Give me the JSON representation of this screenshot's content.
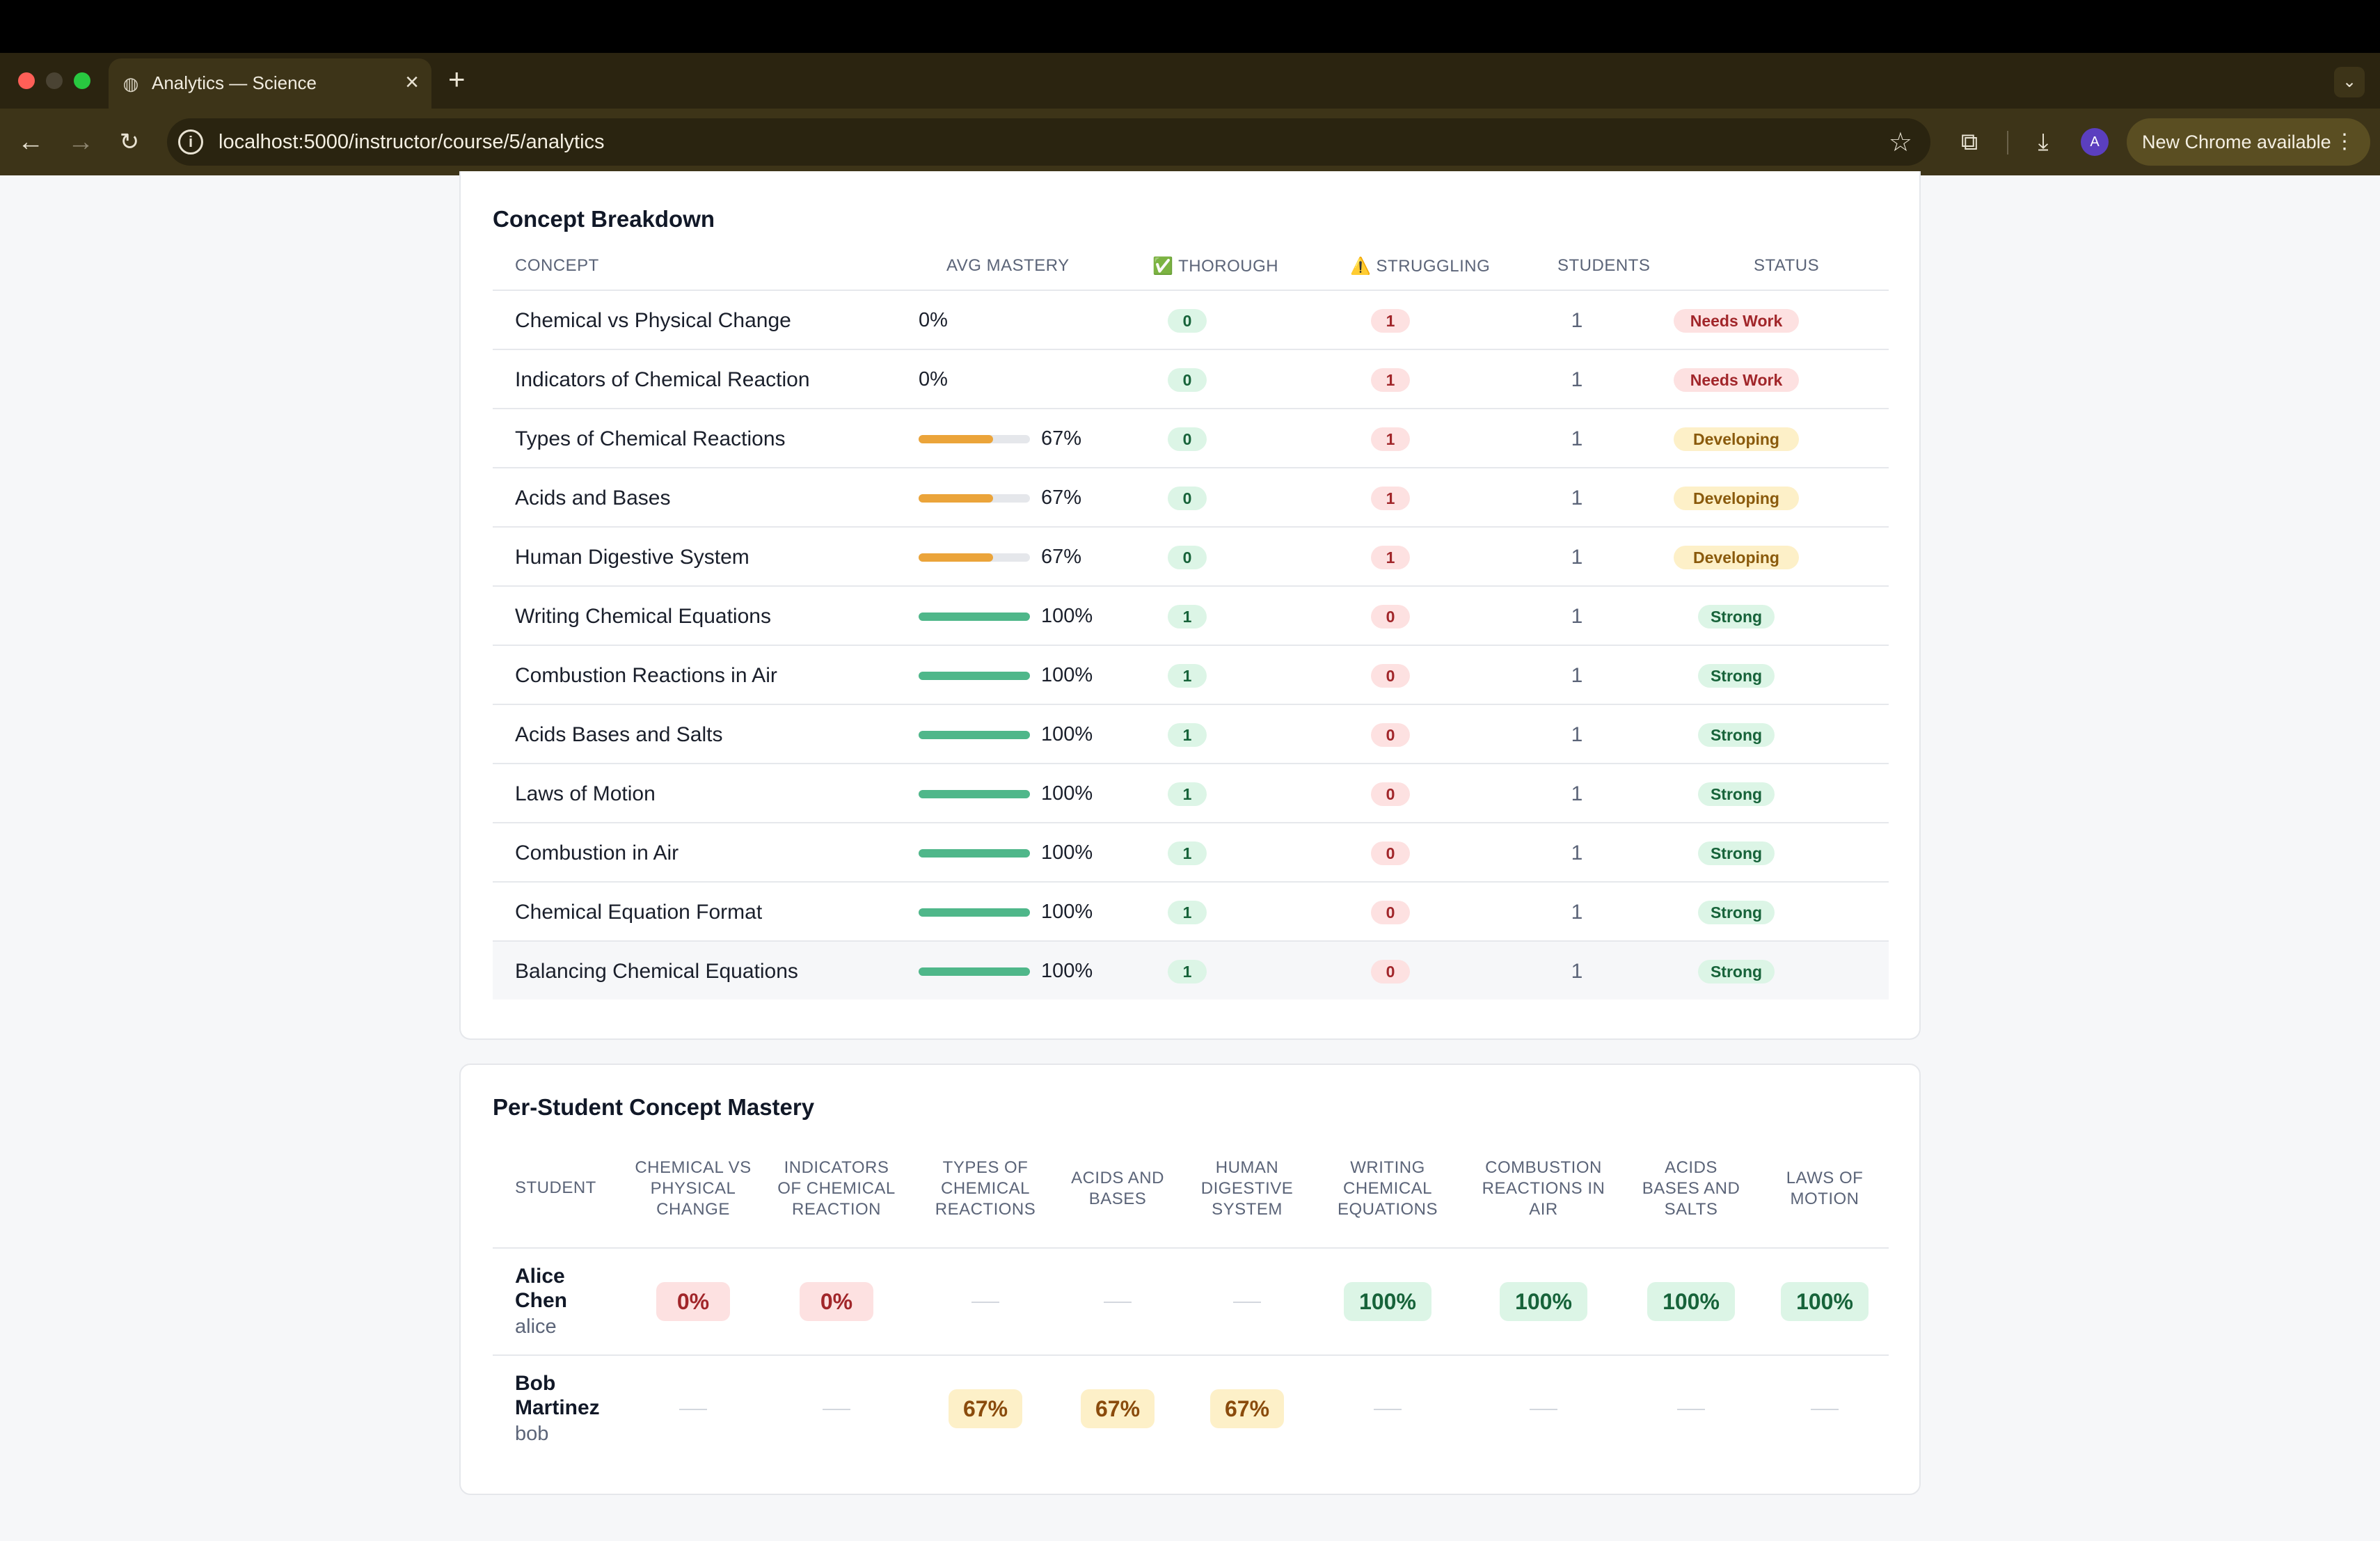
{
  "browser": {
    "tab_title": "Analytics — Science",
    "url": "localhost:5000/instructor/course/5/analytics",
    "update_label": "New Chrome available",
    "avatar_letter": "A"
  },
  "concept_breakdown": {
    "title": "Concept Breakdown",
    "headers": {
      "concept": "CONCEPT",
      "avg_mastery": "AVG MASTERY",
      "thorough": "✅ THOROUGH",
      "struggling": "⚠️ STRUGGLING",
      "students": "STUDENTS",
      "status": "STATUS"
    },
    "rows": [
      {
        "concept": "Chemical vs Physical Change",
        "mastery": "0%",
        "mastery_value": 0,
        "thorough": "0",
        "struggling": "1",
        "students": "1",
        "status": "Needs Work",
        "level": "red"
      },
      {
        "concept": "Indicators of Chemical Reaction",
        "mastery": "0%",
        "mastery_value": 0,
        "thorough": "0",
        "struggling": "1",
        "students": "1",
        "status": "Needs Work",
        "level": "red"
      },
      {
        "concept": "Types of Chemical Reactions",
        "mastery": "67%",
        "mastery_value": 67,
        "thorough": "0",
        "struggling": "1",
        "students": "1",
        "status": "Developing",
        "level": "yellow"
      },
      {
        "concept": "Acids and Bases",
        "mastery": "67%",
        "mastery_value": 67,
        "thorough": "0",
        "struggling": "1",
        "students": "1",
        "status": "Developing",
        "level": "yellow"
      },
      {
        "concept": "Human Digestive System",
        "mastery": "67%",
        "mastery_value": 67,
        "thorough": "0",
        "struggling": "1",
        "students": "1",
        "status": "Developing",
        "level": "yellow"
      },
      {
        "concept": "Writing Chemical Equations",
        "mastery": "100%",
        "mastery_value": 100,
        "thorough": "1",
        "struggling": "0",
        "students": "1",
        "status": "Strong",
        "level": "green"
      },
      {
        "concept": "Combustion Reactions in Air",
        "mastery": "100%",
        "mastery_value": 100,
        "thorough": "1",
        "struggling": "0",
        "students": "1",
        "status": "Strong",
        "level": "green"
      },
      {
        "concept": "Acids Bases and Salts",
        "mastery": "100%",
        "mastery_value": 100,
        "thorough": "1",
        "struggling": "0",
        "students": "1",
        "status": "Strong",
        "level": "green"
      },
      {
        "concept": "Laws of Motion",
        "mastery": "100%",
        "mastery_value": 100,
        "thorough": "1",
        "struggling": "0",
        "students": "1",
        "status": "Strong",
        "level": "green"
      },
      {
        "concept": "Combustion in Air",
        "mastery": "100%",
        "mastery_value": 100,
        "thorough": "1",
        "struggling": "0",
        "students": "1",
        "status": "Strong",
        "level": "green"
      },
      {
        "concept": "Chemical Equation Format",
        "mastery": "100%",
        "mastery_value": 100,
        "thorough": "1",
        "struggling": "0",
        "students": "1",
        "status": "Strong",
        "level": "green"
      },
      {
        "concept": "Balancing Chemical Equations",
        "mastery": "100%",
        "mastery_value": 100,
        "thorough": "1",
        "struggling": "0",
        "students": "1",
        "status": "Strong",
        "level": "green"
      }
    ]
  },
  "per_student": {
    "title": "Per-Student Concept Mastery",
    "student_header": "STUDENT",
    "columns": [
      "CHEMICAL VS PHYSICAL CHANGE",
      "INDICATORS OF CHEMICAL REACTION",
      "TYPES OF CHEMICAL REACTIONS",
      "ACIDS AND BASES",
      "HUMAN DIGESTIVE SYSTEM",
      "WRITING CHEMICAL EQUATIONS",
      "COMBUSTION REACTIONS IN AIR",
      "ACIDS BASES AND SALTS",
      "LAWS OF MOTION"
    ],
    "students": [
      {
        "name": "Alice Chen",
        "username": "alice",
        "scores": [
          "0%",
          "0%",
          null,
          null,
          null,
          "100%",
          "100%",
          "100%",
          "100%"
        ]
      },
      {
        "name": "Bob Martinez",
        "username": "bob",
        "scores": [
          null,
          null,
          "67%",
          "67%",
          "67%",
          null,
          null,
          null,
          null
        ]
      }
    ]
  },
  "colors": {
    "bar_green": "#4fb78a",
    "bar_orange": "#eba43a",
    "brand_chrome": "#3d3418"
  }
}
